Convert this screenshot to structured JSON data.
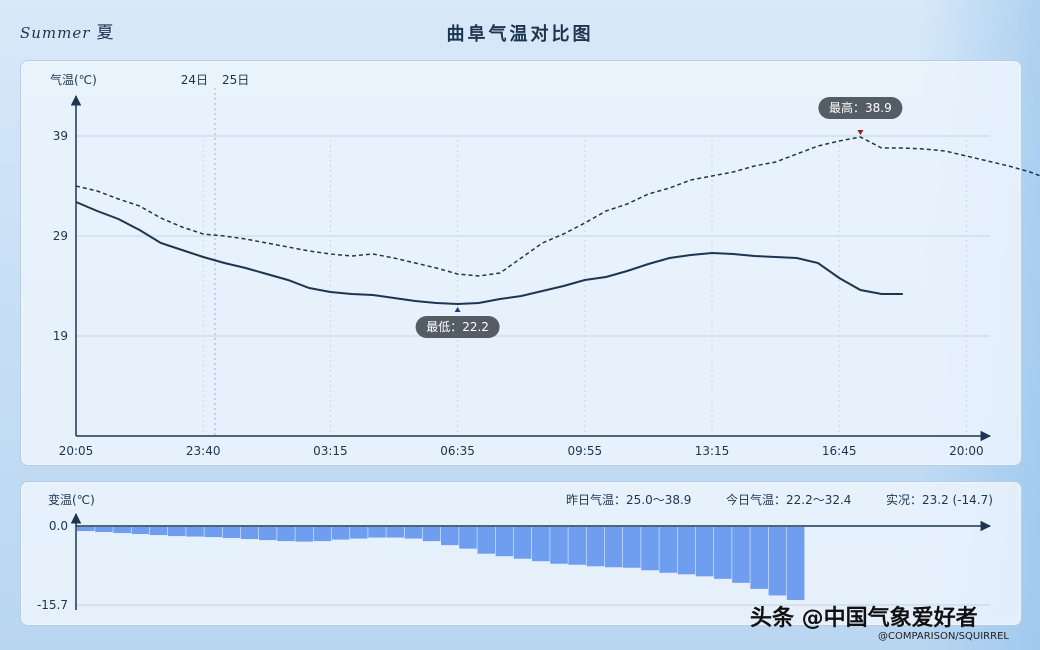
{
  "header": {
    "brand": "Summer",
    "brand_cn": "夏",
    "title": "曲阜气温对比图"
  },
  "footer": {
    "watermark": "头条 @中国气象爱好者",
    "credit": "@COMPARISON/SQUIRREL"
  },
  "chart_data": [
    {
      "type": "line",
      "ylabel": "气温(℃)",
      "ylim": [
        9,
        39
      ],
      "yticks": [
        39,
        29,
        19
      ],
      "x_tick_labels": [
        "20:05",
        "23:40",
        "03:15",
        "06:35",
        "09:55",
        "13:15",
        "16:45",
        "20:00"
      ],
      "day_markers": [
        "24日",
        "25日"
      ],
      "series": [
        {
          "style": "dashed",
          "x": [
            0,
            0.5,
            1,
            1.5,
            2,
            2.5,
            3,
            3.5,
            4,
            4.5,
            5,
            5.5,
            6,
            6.5,
            7,
            7.5,
            8,
            8.5,
            9,
            9.5,
            10,
            10.5,
            11,
            11.5,
            12,
            12.5,
            13,
            13.5,
            14,
            14.5,
            15,
            15.5,
            16,
            16.5,
            17,
            17.5,
            18,
            18.5,
            19,
            19.5,
            20,
            20.5,
            21,
            21.5,
            22,
            22.5,
            23,
            23.5,
            24
          ],
          "values": [
            34.0,
            33.5,
            32.7,
            32.0,
            30.8,
            29.9,
            29.2,
            29.0,
            28.7,
            28.3,
            27.9,
            27.5,
            27.2,
            27.0,
            27.2,
            26.8,
            26.3,
            25.8,
            25.2,
            25.0,
            25.3,
            26.8,
            28.3,
            29.2,
            30.3,
            31.5,
            32.2,
            33.2,
            33.8,
            34.6,
            35.0,
            35.4,
            36.0,
            36.4,
            37.2,
            38.0,
            38.5,
            38.9,
            37.8,
            37.8,
            37.7,
            37.5,
            37.0,
            36.5,
            36.0,
            35.4,
            34.6,
            33.8,
            32.4
          ],
          "annotation": "最高：38.9"
        },
        {
          "style": "solid",
          "x": [
            0,
            0.5,
            1,
            1.5,
            2,
            2.5,
            3,
            3.5,
            4,
            4.5,
            5,
            5.5,
            6,
            6.5,
            7,
            7.5,
            8,
            8.5,
            9,
            9.5,
            10,
            10.5,
            11,
            11.5,
            12,
            12.5,
            13,
            13.5,
            14,
            14.5,
            15,
            15.5,
            16,
            16.5,
            17,
            17.5,
            18,
            18.5,
            19,
            19.5
          ],
          "values": [
            32.4,
            31.5,
            30.7,
            29.6,
            28.3,
            27.6,
            26.9,
            26.3,
            25.8,
            25.2,
            24.6,
            23.8,
            23.4,
            23.2,
            23.1,
            22.8,
            22.5,
            22.3,
            22.2,
            22.3,
            22.7,
            23.0,
            23.5,
            24.0,
            24.6,
            24.9,
            25.5,
            26.2,
            26.8,
            27.1,
            27.3,
            27.2,
            27.0,
            26.9,
            26.8,
            26.3,
            24.8,
            23.6,
            23.2,
            23.2
          ],
          "annotation": "最低：22.2"
        }
      ]
    },
    {
      "type": "bar",
      "ylabel": "变温(℃)",
      "ylim": [
        -15.7,
        0
      ],
      "yticks": [
        0.0,
        -15.7
      ],
      "stats": {
        "yesterday": "昨日气温：25.0～38.9",
        "today": "今日气温：22.2～32.4",
        "current": "实况：23.2 (-14.7)"
      },
      "values": [
        -1.0,
        -1.2,
        -1.4,
        -1.6,
        -1.8,
        -2.0,
        -2.1,
        -2.2,
        -2.4,
        -2.6,
        -2.8,
        -3.0,
        -3.1,
        -3.0,
        -2.7,
        -2.5,
        -2.3,
        -2.3,
        -2.5,
        -3.0,
        -3.8,
        -4.5,
        -5.5,
        -6.0,
        -6.5,
        -7.0,
        -7.5,
        -7.7,
        -8.0,
        -8.2,
        -8.3,
        -8.8,
        -9.3,
        -9.6,
        -10.0,
        -10.5,
        -11.3,
        -12.5,
        -13.8,
        -14.7
      ]
    }
  ]
}
